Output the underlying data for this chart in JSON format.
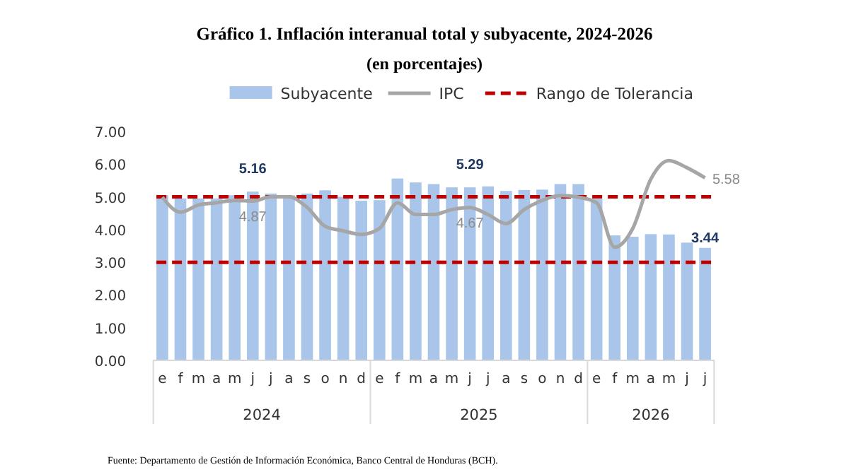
{
  "chart_data": {
    "type": "bar",
    "title": "Gráfico 1. Inflación interanual total y subyacente, 2024-2026",
    "subtitle": "(en porcentajes)",
    "categories": [
      "e",
      "f",
      "m",
      "a",
      "m",
      "j",
      "j",
      "a",
      "s",
      "o",
      "n",
      "d",
      "e",
      "f",
      "m",
      "a",
      "m",
      "j",
      "j",
      "a",
      "s",
      "o",
      "n",
      "d",
      "e",
      "f",
      "m",
      "a",
      "m",
      "j",
      "j"
    ],
    "series": [
      {
        "name": "Subyacente",
        "color": "#a9c5ea",
        "values": [
          5.05,
          4.95,
          4.95,
          4.95,
          5.05,
          5.16,
          5.1,
          5.05,
          5.1,
          5.2,
          5.0,
          4.88,
          4.9,
          5.56,
          5.44,
          5.39,
          5.29,
          5.29,
          5.32,
          5.18,
          5.21,
          5.22,
          5.39,
          5.39,
          4.93,
          3.82,
          3.78,
          3.86,
          3.85,
          3.6,
          3.44
        ],
        "value_labels": [
          null,
          null,
          null,
          null,
          null,
          "5.16",
          null,
          null,
          null,
          null,
          null,
          null,
          null,
          null,
          null,
          null,
          null,
          "5.29",
          null,
          null,
          null,
          null,
          null,
          null,
          null,
          null,
          null,
          null,
          null,
          null,
          "3.44"
        ]
      },
      {
        "name": "IPC",
        "type": "line",
        "color": "#a6a6a6",
        "values": [
          4.99,
          4.53,
          4.75,
          4.82,
          4.89,
          4.87,
          5.0,
          5.0,
          4.68,
          4.1,
          3.96,
          3.85,
          4.03,
          4.82,
          4.46,
          4.46,
          4.61,
          4.67,
          4.46,
          4.18,
          4.61,
          4.89,
          5.04,
          4.99,
          4.82,
          3.46,
          4.03,
          5.54,
          6.11,
          5.89,
          5.58
        ],
        "value_labels": [
          null,
          null,
          null,
          null,
          null,
          "4.87",
          null,
          null,
          null,
          null,
          null,
          null,
          null,
          null,
          null,
          null,
          null,
          "4.67",
          null,
          null,
          null,
          null,
          null,
          null,
          null,
          null,
          null,
          null,
          null,
          null,
          "5.58"
        ]
      }
    ],
    "ref_lines": [
      {
        "axis": "y",
        "value": 5,
        "label": "Rango de Tolerancia",
        "color": "#c00000",
        "line_style": "dashed"
      },
      {
        "axis": "y",
        "value": 3,
        "color": "#c00000",
        "line_style": "dashed"
      }
    ],
    "ylim": [
      0,
      7
    ],
    "yticks": [
      {
        "value": 0,
        "label": "0.00"
      },
      {
        "value": 1,
        "label": "1.00"
      },
      {
        "value": 2,
        "label": "2.00"
      },
      {
        "value": 3,
        "label": "3.00"
      },
      {
        "value": 4,
        "label": "4.00"
      },
      {
        "value": 5,
        "label": "5.00"
      },
      {
        "value": 6,
        "label": "6.00"
      },
      {
        "value": 7,
        "label": "7.00"
      }
    ],
    "grid": false,
    "legend": "top",
    "annotations": [
      "2024",
      "2025",
      "2026",
      "Fuente: Departamento de Gestión de Información Económica, Banco Central de Honduras (BCH)."
    ]
  }
}
